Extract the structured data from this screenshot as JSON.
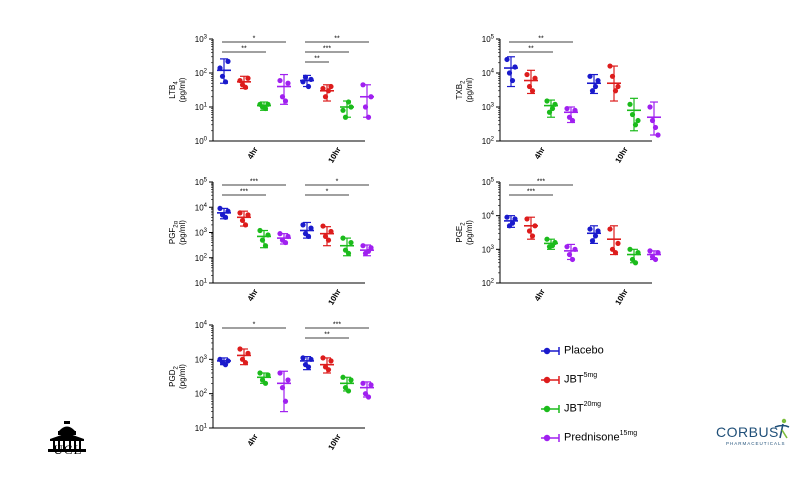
{
  "colors": {
    "placebo": "#1a1acc",
    "jbt5": "#dd1c1c",
    "jbt20": "#1bbb1b",
    "prednisone": "#a020f0"
  },
  "legend": [
    {
      "key": "placebo",
      "label": "Placebo",
      "sup": ""
    },
    {
      "key": "jbt5",
      "label": "JBT",
      "sup": "5mg"
    },
    {
      "key": "jbt20",
      "label": "JBT",
      "sup": "20mg"
    },
    {
      "key": "prednisone",
      "label": "Prednisone",
      "sup": "15mg"
    }
  ],
  "logos": {
    "ucl": "UCL",
    "corbus": "CORBUS",
    "corbus_sub": "PHARMACEUTICALS"
  },
  "chart_data": [
    {
      "type": "scatter",
      "ylabel_main": "LTB",
      "ylabel_sub": "4",
      "ylabel_unit": "(pg/ml)",
      "yscale": "log",
      "ylim": [
        1,
        1000
      ],
      "yticks": [
        {
          "v": 1,
          "base": "10",
          "exp": "0"
        },
        {
          "v": 10,
          "base": "10",
          "exp": "1"
        },
        {
          "v": 100,
          "base": "10",
          "exp": "2"
        },
        {
          "v": 1000,
          "base": "10",
          "exp": "3"
        }
      ],
      "categories": [
        "4hr",
        "10hr"
      ],
      "groups": [
        {
          "key": "placebo",
          "mean": [
            120,
            60
          ],
          "err": [
            [
              50,
              260
            ],
            [
              40,
              85
            ]
          ],
          "points": [
            [
              140,
              80,
              55,
              220
            ],
            [
              55,
              75,
              40,
              65
            ]
          ]
        },
        {
          "key": "jbt5",
          "mean": [
            55,
            30
          ],
          "err": [
            [
              35,
              80
            ],
            [
              15,
              45
            ]
          ],
          "points": [
            [
              60,
              45,
              38,
              70
            ],
            [
              35,
              20,
              30,
              40
            ]
          ]
        },
        {
          "key": "jbt20",
          "mean": [
            11,
            10
          ],
          "err": [
            [
              8,
              14
            ],
            [
              5,
              15
            ]
          ],
          "points": [
            [
              12,
              10,
              9,
              12
            ],
            [
              8,
              5,
              14,
              10
            ]
          ]
        },
        {
          "key": "prednisone",
          "mean": [
            40,
            20
          ],
          "err": [
            [
              12,
              90
            ],
            [
              5,
              45
            ]
          ],
          "points": [
            [
              60,
              20,
              15,
              50
            ],
            [
              45,
              10,
              5,
              20
            ]
          ]
        }
      ],
      "significance": [
        {
          "cat": 0,
          "label": "*",
          "from": 0,
          "to": 3
        },
        {
          "cat": 0,
          "label": "**",
          "from": 0,
          "to": 2
        },
        {
          "cat": 1,
          "label": "**",
          "from": 0,
          "to": 3
        },
        {
          "cat": 1,
          "label": "***",
          "from": 0,
          "to": 2
        },
        {
          "cat": 1,
          "label": "**",
          "from": 0,
          "to": 1
        }
      ]
    },
    {
      "type": "scatter",
      "ylabel_main": "TXB",
      "ylabel_sub": "2",
      "ylabel_unit": "(pg/ml)",
      "yscale": "log",
      "ylim": [
        100,
        100000
      ],
      "yticks": [
        {
          "v": 100,
          "base": "10",
          "exp": "2"
        },
        {
          "v": 1000,
          "base": "10",
          "exp": "3"
        },
        {
          "v": 10000,
          "base": "10",
          "exp": "4"
        },
        {
          "v": 100000,
          "base": "10",
          "exp": "5"
        }
      ],
      "categories": [
        "4hr",
        "10hr"
      ],
      "groups": [
        {
          "key": "placebo",
          "mean": [
            14000,
            5000
          ],
          "err": [
            [
              4000,
              30000
            ],
            [
              2500,
              9000
            ]
          ],
          "points": [
            [
              25000,
              10000,
              6000,
              15000
            ],
            [
              8000,
              3000,
              4000,
              6000
            ]
          ]
        },
        {
          "key": "jbt5",
          "mean": [
            6000,
            5000
          ],
          "err": [
            [
              2500,
              12000
            ],
            [
              1500,
              16000
            ]
          ],
          "points": [
            [
              9000,
              4000,
              3000,
              7000
            ],
            [
              16000,
              8000,
              3000,
              4000
            ]
          ]
        },
        {
          "key": "jbt20",
          "mean": [
            1100,
            800
          ],
          "err": [
            [
              500,
              1600
            ],
            [
              200,
              1800
            ]
          ],
          "points": [
            [
              1500,
              700,
              900,
              1200
            ],
            [
              1200,
              600,
              300,
              400
            ]
          ]
        },
        {
          "key": "prednisone",
          "mean": [
            700,
            500
          ],
          "err": [
            [
              350,
              1000
            ],
            [
              150,
              1400
            ]
          ],
          "points": [
            [
              900,
              500,
              400,
              800
            ],
            [
              1000,
              400,
              250,
              150
            ]
          ]
        }
      ],
      "significance": [
        {
          "cat": 0,
          "label": "**",
          "from": 0,
          "to": 3
        },
        {
          "cat": 0,
          "label": "**",
          "from": 0,
          "to": 2
        }
      ]
    },
    {
      "type": "scatter",
      "ylabel_main": "PGF",
      "ylabel_sub": "2α",
      "ylabel_unit": "(pg/ml)",
      "yscale": "log",
      "ylim": [
        10,
        100000
      ],
      "yticks": [
        {
          "v": 10,
          "base": "10",
          "exp": "1"
        },
        {
          "v": 100,
          "base": "10",
          "exp": "2"
        },
        {
          "v": 1000,
          "base": "10",
          "exp": "3"
        },
        {
          "v": 10000,
          "base": "10",
          "exp": "4"
        },
        {
          "v": 100000,
          "base": "10",
          "exp": "5"
        }
      ],
      "categories": [
        "4hr",
        "10hr"
      ],
      "groups": [
        {
          "key": "placebo",
          "mean": [
            6000,
            1200
          ],
          "err": [
            [
              3500,
              9000
            ],
            [
              600,
              2500
            ]
          ],
          "points": [
            [
              9000,
              5000,
              4000,
              7000
            ],
            [
              2000,
              900,
              700,
              1500
            ]
          ]
        },
        {
          "key": "jbt5",
          "mean": [
            4000,
            900
          ],
          "err": [
            [
              1800,
              7000
            ],
            [
              300,
              1700
            ]
          ],
          "points": [
            [
              6000,
              3000,
              2000,
              5000
            ],
            [
              1800,
              700,
              500,
              1100
            ]
          ]
        },
        {
          "key": "jbt20",
          "mean": [
            700,
            300
          ],
          "err": [
            [
              250,
              1200
            ],
            [
              120,
              600
            ]
          ],
          "points": [
            [
              1200,
              500,
              300,
              800
            ],
            [
              600,
              200,
              150,
              400
            ]
          ]
        },
        {
          "key": "prednisone",
          "mean": [
            600,
            200
          ],
          "err": [
            [
              350,
              900
            ],
            [
              120,
              320
            ]
          ],
          "points": [
            [
              900,
              500,
              400,
              700
            ],
            [
              300,
              150,
              180,
              250
            ]
          ]
        }
      ],
      "significance": [
        {
          "cat": 0,
          "label": "***",
          "from": 0,
          "to": 3
        },
        {
          "cat": 0,
          "label": "***",
          "from": 0,
          "to": 2
        },
        {
          "cat": 1,
          "label": "*",
          "from": 0,
          "to": 3
        },
        {
          "cat": 1,
          "label": "*",
          "from": 0,
          "to": 2
        }
      ]
    },
    {
      "type": "scatter",
      "ylabel_main": "PGE",
      "ylabel_sub": "2",
      "ylabel_unit": "(pg/ml)",
      "yscale": "log",
      "ylim": [
        100,
        100000
      ],
      "yticks": [
        {
          "v": 100,
          "base": "10",
          "exp": "2"
        },
        {
          "v": 1000,
          "base": "10",
          "exp": "3"
        },
        {
          "v": 10000,
          "base": "10",
          "exp": "4"
        },
        {
          "v": 100000,
          "base": "10",
          "exp": "5"
        }
      ],
      "categories": [
        "4hr",
        "10hr"
      ],
      "groups": [
        {
          "key": "placebo",
          "mean": [
            7000,
            3000
          ],
          "err": [
            [
              4500,
              10000
            ],
            [
              1500,
              5000
            ]
          ],
          "points": [
            [
              9000,
              5000,
              6000,
              8000
            ],
            [
              4000,
              1800,
              2500,
              3500
            ]
          ]
        },
        {
          "key": "jbt5",
          "mean": [
            5000,
            2000
          ],
          "err": [
            [
              2000,
              9000
            ],
            [
              700,
              5000
            ]
          ],
          "points": [
            [
              8000,
              3500,
              2500,
              5000
            ],
            [
              4000,
              1000,
              800,
              1500
            ]
          ]
        },
        {
          "key": "jbt20",
          "mean": [
            1500,
            700
          ],
          "err": [
            [
              1000,
              2000
            ],
            [
              400,
              1000
            ]
          ],
          "points": [
            [
              2000,
              1200,
              1300,
              1600
            ],
            [
              1000,
              500,
              400,
              800
            ]
          ]
        },
        {
          "key": "prednisone",
          "mean": [
            900,
            700
          ],
          "err": [
            [
              500,
              1400
            ],
            [
              500,
              900
            ]
          ],
          "points": [
            [
              1200,
              700,
              500,
              1000
            ],
            [
              900,
              600,
              500,
              800
            ]
          ]
        }
      ],
      "significance": [
        {
          "cat": 0,
          "label": "***",
          "from": 0,
          "to": 3
        },
        {
          "cat": 0,
          "label": "***",
          "from": 0,
          "to": 2
        }
      ]
    },
    {
      "type": "scatter",
      "ylabel_main": "PGD",
      "ylabel_sub": "2",
      "ylabel_unit": "(pg/ml)",
      "yscale": "log",
      "ylim": [
        10,
        10000
      ],
      "yticks": [
        {
          "v": 10,
          "base": "10",
          "exp": "1"
        },
        {
          "v": 100,
          "base": "10",
          "exp": "2"
        },
        {
          "v": 1000,
          "base": "10",
          "exp": "3"
        },
        {
          "v": 10000,
          "base": "10",
          "exp": "4"
        }
      ],
      "categories": [
        "4hr",
        "10hr"
      ],
      "groups": [
        {
          "key": "placebo",
          "mean": [
            900,
            900
          ],
          "err": [
            [
              700,
              1100
            ],
            [
              500,
              1200
            ]
          ],
          "points": [
            [
              1000,
              800,
              700,
              900
            ],
            [
              1100,
              700,
              600,
              1000
            ]
          ]
        },
        {
          "key": "jbt5",
          "mean": [
            1300,
            700
          ],
          "err": [
            [
              700,
              2000
            ],
            [
              400,
              1100
            ]
          ],
          "points": [
            [
              2000,
              1000,
              800,
              1500
            ],
            [
              1100,
              600,
              500,
              900
            ]
          ]
        },
        {
          "key": "jbt20",
          "mean": [
            300,
            200
          ],
          "err": [
            [
              200,
              400
            ],
            [
              120,
              300
            ]
          ],
          "points": [
            [
              400,
              250,
              200,
              350
            ],
            [
              300,
              150,
              120,
              250
            ]
          ]
        },
        {
          "key": "prednisone",
          "mean": [
            200,
            150
          ],
          "err": [
            [
              30,
              450
            ],
            [
              80,
              220
            ]
          ],
          "points": [
            [
              400,
              150,
              60,
              250
            ],
            [
              200,
              100,
              80,
              180
            ]
          ]
        }
      ],
      "significance": [
        {
          "cat": 0,
          "label": "*",
          "from": 0,
          "to": 3
        },
        {
          "cat": 1,
          "label": "***",
          "from": 0,
          "to": 3
        },
        {
          "cat": 1,
          "label": "**",
          "from": 0,
          "to": 2
        }
      ]
    }
  ]
}
